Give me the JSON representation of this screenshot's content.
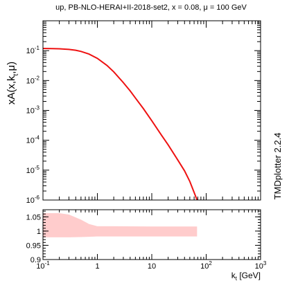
{
  "chart_data": [
    {
      "type": "line",
      "title": "up, PB-NLO-HERAI+II-2018-set2, x = 0.08, μ = 100 GeV",
      "ylabel": {
        "main": "xA(x,k",
        "sub1": "t",
        "mid": ",μ)"
      },
      "xscale": "log",
      "yscale": "log",
      "xlim": [
        0.1,
        1000
      ],
      "ylim": [
        1e-06,
        1
      ],
      "x_tick_labels": [
        {
          "value": 0.1,
          "base": "10",
          "exp": "-1"
        },
        {
          "value": 1,
          "text": "1"
        },
        {
          "value": 10,
          "text": "10"
        },
        {
          "value": 100,
          "base": "10",
          "exp": "2"
        },
        {
          "value": 1000,
          "base": "10",
          "exp": "3"
        }
      ],
      "y_tick_labels": [
        {
          "value": 0.1,
          "base": "10",
          "exp": "-1"
        },
        {
          "value": 0.01,
          "base": "10",
          "exp": "-2"
        },
        {
          "value": 0.001,
          "base": "10",
          "exp": "-3"
        },
        {
          "value": 0.0001,
          "base": "10",
          "exp": "-4"
        },
        {
          "value": 1e-05,
          "base": "10",
          "exp": "-5"
        },
        {
          "value": 1e-06,
          "base": "10",
          "exp": "-6"
        }
      ],
      "series": [
        {
          "color": "#ee1111",
          "points": [
            [
              0.1,
              0.118
            ],
            [
              0.15,
              0.117
            ],
            [
              0.2,
              0.115
            ],
            [
              0.3,
              0.11
            ],
            [
              0.4,
              0.103
            ],
            [
              0.5,
              0.094
            ],
            [
              0.7,
              0.077
            ],
            [
              1.0,
              0.055
            ],
            [
              1.5,
              0.032
            ],
            [
              2.0,
              0.0195
            ],
            [
              3.0,
              0.0085
            ],
            [
              4.0,
              0.0045
            ],
            [
              5.0,
              0.0026
            ],
            [
              7.0,
              0.00115
            ],
            [
              10.0,
              0.00045
            ],
            [
              15.0,
              0.00015
            ],
            [
              20.0,
              7e-05
            ],
            [
              30.0,
              2.2e-05
            ],
            [
              40.0,
              9.5e-06
            ],
            [
              50.0,
              4.2e-06
            ],
            [
              60.0,
              1.8e-06
            ],
            [
              68.0,
              1e-06
            ]
          ]
        }
      ]
    },
    {
      "type": "area",
      "xscale": "log",
      "xlim": [
        0.1,
        1000
      ],
      "ylim": [
        0.9,
        1.075
      ],
      "y_tick_labels": [
        "0.9",
        "0.95",
        "1",
        "1.05"
      ],
      "y_tick_values": [
        0.9,
        0.95,
        1.0,
        1.05
      ],
      "band_color": "#ffcccc",
      "band": [
        {
          "x": 0.1,
          "lo": 0.978,
          "hi": 1.063
        },
        {
          "x": 0.2,
          "lo": 0.978,
          "hi": 1.063
        },
        {
          "x": 0.3,
          "lo": 0.978,
          "hi": 1.058
        },
        {
          "x": 0.5,
          "lo": 0.979,
          "hi": 1.04
        },
        {
          "x": 0.7,
          "lo": 0.98,
          "hi": 1.025
        },
        {
          "x": 1.0,
          "lo": 0.981,
          "hi": 1.017
        },
        {
          "x": 2.0,
          "lo": 0.981,
          "hi": 1.017
        },
        {
          "x": 10.0,
          "lo": 0.981,
          "hi": 1.016
        },
        {
          "x": 68.0,
          "lo": 0.981,
          "hi": 1.016
        }
      ],
      "xlabel": {
        "main": "k",
        "sub": "t",
        "rest": " [GeV]"
      }
    }
  ],
  "side_label": "TMDplotter 2.2.4"
}
